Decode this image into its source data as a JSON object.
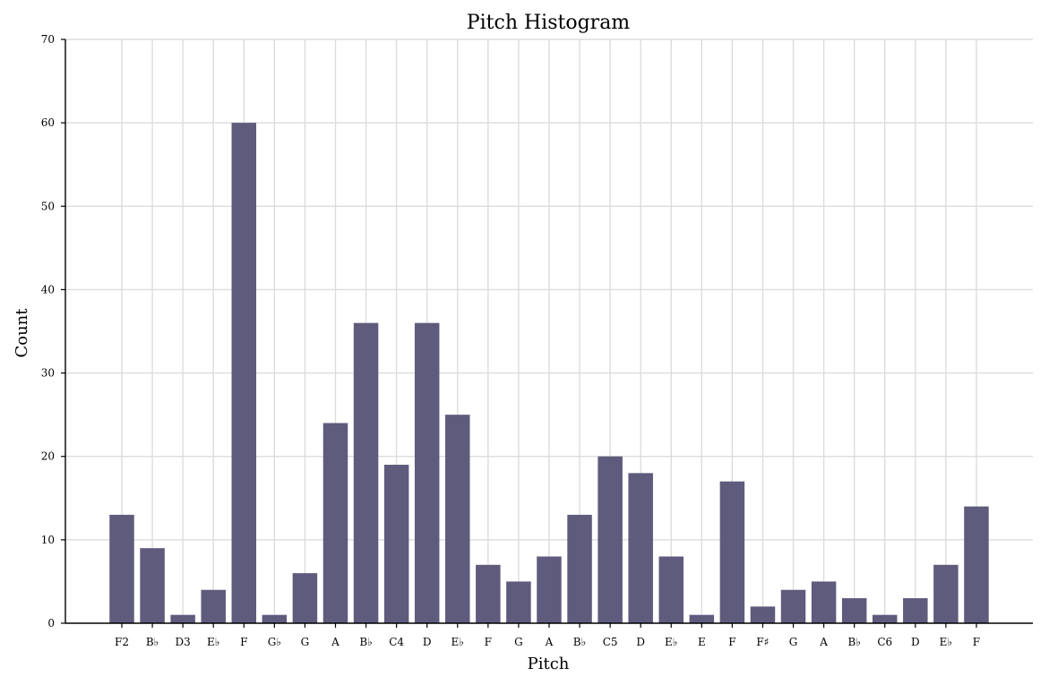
{
  "chart_data": {
    "type": "bar",
    "title": "Pitch Histogram",
    "xlabel": "Pitch",
    "ylabel": "Count",
    "ylim": [
      0,
      70
    ],
    "yticks": [
      0,
      10,
      20,
      30,
      40,
      50,
      60,
      70
    ],
    "grid": true,
    "bar_color": "#5f5b7d",
    "categories": [
      "F2",
      "B♭",
      "D3",
      "E♭",
      "F",
      "G♭",
      "G",
      "A",
      "B♭",
      "C4",
      "D",
      "E♭",
      "F",
      "G",
      "A",
      "B♭",
      "C5",
      "D",
      "E♭",
      "E",
      "F",
      "F♯",
      "G",
      "A",
      "B♭",
      "C6",
      "D",
      "E♭",
      "F"
    ],
    "values": [
      13,
      9,
      1,
      4,
      60,
      1,
      6,
      24,
      36,
      19,
      36,
      25,
      7,
      5,
      8,
      13,
      20,
      18,
      8,
      1,
      17,
      2,
      4,
      5,
      3,
      1,
      3,
      7,
      14
    ]
  }
}
